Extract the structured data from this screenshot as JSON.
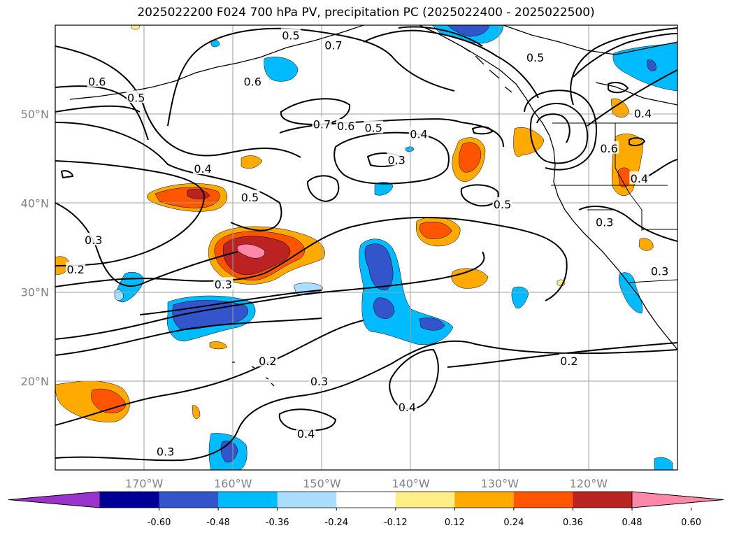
{
  "title": "2025022200 F024 700 hPa PV, precipitation PC (2025022400 - 2025022500)",
  "lat_labels": [
    {
      "id": "lat-50",
      "text": "50°N",
      "lat": 50
    },
    {
      "id": "lat-40",
      "text": "40°N",
      "lat": 40
    },
    {
      "id": "lat-30",
      "text": "30°N",
      "lat": 30
    },
    {
      "id": "lat-20",
      "text": "20°N",
      "lat": 20
    }
  ],
  "lon_labels": [
    {
      "id": "lon-170",
      "text": "170°W",
      "lon": -170
    },
    {
      "id": "lon-160",
      "text": "160°W",
      "lon": -160
    },
    {
      "id": "lon-150",
      "text": "150°W",
      "lon": -150
    },
    {
      "id": "lon-140",
      "text": "140°W",
      "lon": -140
    },
    {
      "id": "lon-130",
      "text": "130°W",
      "lon": -130
    },
    {
      "id": "lon-120",
      "text": "120°W",
      "lon": -120
    }
  ],
  "contour_labels": [
    {
      "text": "0.5",
      "lon": -153.5,
      "lat": 58.8
    },
    {
      "text": "0.7",
      "lon": -148.7,
      "lat": 57.7
    },
    {
      "text": "0.5",
      "lon": -126.0,
      "lat": 56.3
    },
    {
      "text": "0.6",
      "lon": -175.3,
      "lat": 53.6
    },
    {
      "text": "0.6",
      "lon": -157.8,
      "lat": 53.6
    },
    {
      "text": "0.5",
      "lon": -170.9,
      "lat": 51.8
    },
    {
      "text": "0.4",
      "lon": -113.9,
      "lat": 50.0
    },
    {
      "text": "0.7",
      "lon": -150.0,
      "lat": 48.8
    },
    {
      "text": "0.6",
      "lon": -147.3,
      "lat": 48.6
    },
    {
      "text": "0.5",
      "lon": -144.2,
      "lat": 48.4
    },
    {
      "text": "0.4",
      "lon": -139.1,
      "lat": 47.7
    },
    {
      "text": "0.6",
      "lon": -117.7,
      "lat": 46.1
    },
    {
      "text": "0.3",
      "lon": -141.6,
      "lat": 44.8
    },
    {
      "text": "0.4",
      "lon": -163.4,
      "lat": 43.8
    },
    {
      "text": "0.4",
      "lon": -114.3,
      "lat": 42.7
    },
    {
      "text": "0.5",
      "lon": -158.1,
      "lat": 40.6
    },
    {
      "text": "0.5",
      "lon": -129.7,
      "lat": 39.8
    },
    {
      "text": "0.3",
      "lon": -118.2,
      "lat": 37.8
    },
    {
      "text": "0.3",
      "lon": -175.7,
      "lat": 35.8
    },
    {
      "text": "0.2",
      "lon": -177.7,
      "lat": 32.5
    },
    {
      "text": "0.3",
      "lon": -112.0,
      "lat": 32.3
    },
    {
      "text": "0.3",
      "lon": -161.1,
      "lat": 30.8
    },
    {
      "text": "0.2",
      "lon": -156.1,
      "lat": 22.2
    },
    {
      "text": "0.2",
      "lon": -122.2,
      "lat": 22.2
    },
    {
      "text": "0.3",
      "lon": -150.3,
      "lat": 19.9
    },
    {
      "text": "0.4",
      "lon": -140.4,
      "lat": 17.0
    },
    {
      "text": "0.4",
      "lon": -151.8,
      "lat": 14.0
    },
    {
      "text": "0.3",
      "lon": -167.6,
      "lat": 12.0
    }
  ],
  "colorbar": {
    "colors": [
      "#9933cc",
      "#000099",
      "#3355cc",
      "#00bbff",
      "#aaddff",
      "#ffffff",
      "#ffee88",
      "#ffaa00",
      "#ff5500",
      "#bb2222",
      "#ff88aa"
    ],
    "ticks": [
      "-0.60",
      "-0.48",
      "-0.36",
      "-0.24",
      "-0.12",
      "0.12",
      "0.24",
      "0.36",
      "0.48",
      "0.60"
    ],
    "extend": "both"
  },
  "map_extent": {
    "lon": [
      -180,
      -110
    ],
    "lat": [
      10,
      60
    ]
  },
  "gridlines": true
}
